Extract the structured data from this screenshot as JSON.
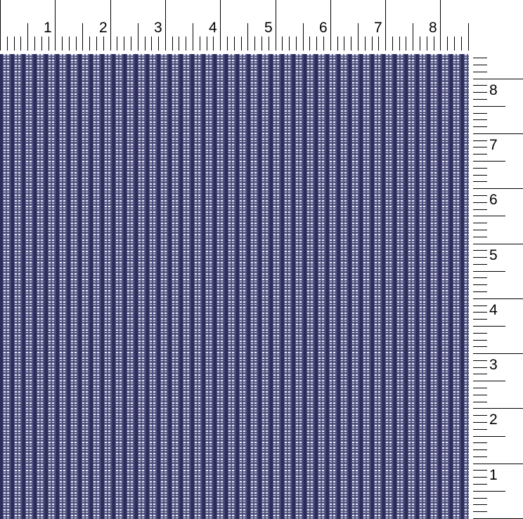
{
  "swatch": {
    "colors": {
      "navy": "#2d2f5e",
      "mid": "#5e6192",
      "highlight": "#f0f0ff"
    },
    "pattern": "navy vertical stripe with white dashed plaid"
  },
  "top_ruler": {
    "labels": [
      "1",
      "2",
      "3",
      "4",
      "5",
      "6",
      "7",
      "8"
    ]
  },
  "right_ruler": {
    "labels": [
      "8",
      "7",
      "6",
      "5",
      "4",
      "3",
      "2",
      "1"
    ]
  }
}
